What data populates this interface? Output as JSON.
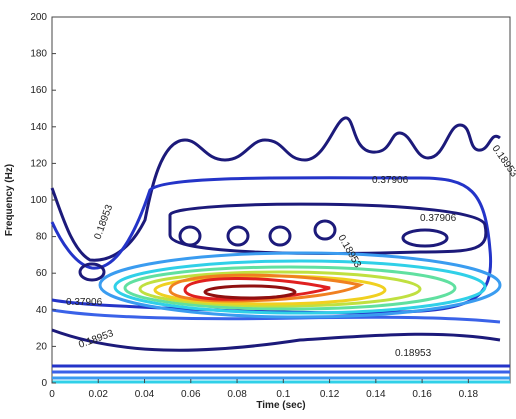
{
  "chart_data": {
    "type": "contour",
    "xlabel": "Time (sec)",
    "ylabel": "Frequency (Hz)",
    "xlim": [
      0,
      0.198
    ],
    "ylim": [
      0,
      200
    ],
    "xticks": [
      0,
      0.02,
      0.04,
      0.06,
      0.08,
      0.1,
      0.12,
      0.14,
      0.16,
      0.18
    ],
    "yticks": [
      0,
      20,
      40,
      60,
      80,
      100,
      120,
      140,
      160,
      180,
      200
    ],
    "contour_labels": [
      "0.37906",
      "0.37906",
      "0.18953",
      "0.18953",
      "0.18953",
      "0.18953",
      "0.37906",
      "0.18953"
    ]
  }
}
